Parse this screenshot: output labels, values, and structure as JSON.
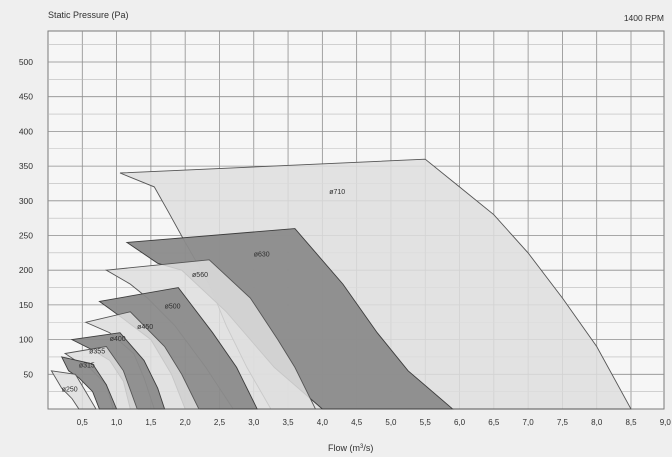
{
  "chart_data": {
    "type": "area",
    "ylabel": "Static Pressure (Pa)",
    "xlabel_main": "Flow (m",
    "xlabel_sup": "3",
    "xlabel_tail": "/s)",
    "corner_note": "1400 RPM",
    "xlim": [
      0,
      9.0
    ],
    "ylim": [
      0,
      560
    ],
    "x_ticks": [
      {
        "v": 0.5,
        "label": "0,5"
      },
      {
        "v": 1.0,
        "label": "1,0"
      },
      {
        "v": 1.5,
        "label": "1,5"
      },
      {
        "v": 2.0,
        "label": "2,0"
      },
      {
        "v": 2.5,
        "label": "2,5"
      },
      {
        "v": 3.0,
        "label": "3,0"
      },
      {
        "v": 3.5,
        "label": "3,5"
      },
      {
        "v": 4.0,
        "label": "4,0"
      },
      {
        "v": 4.5,
        "label": "4,5"
      },
      {
        "v": 5.0,
        "label": "5,0"
      },
      {
        "v": 5.5,
        "label": "5,5"
      },
      {
        "v": 6.0,
        "label": "6,0"
      },
      {
        "v": 6.5,
        "label": "6,5"
      },
      {
        "v": 7.0,
        "label": "7,0"
      },
      {
        "v": 7.5,
        "label": "7,5"
      },
      {
        "v": 8.0,
        "label": "8,0"
      },
      {
        "v": 8.5,
        "label": "8,5"
      },
      {
        "v": 9.0,
        "label": "9,0"
      }
    ],
    "y_ticks": [
      50,
      100,
      150,
      200,
      250,
      300,
      350,
      400,
      450,
      500
    ],
    "grid": true,
    "series": [
      {
        "name": "ø710",
        "fill": "light",
        "region": [
          [
            1.05,
            340
          ],
          [
            5.5,
            360
          ],
          [
            6.0,
            320
          ],
          [
            6.5,
            280
          ],
          [
            7.0,
            225
          ],
          [
            7.5,
            160
          ],
          [
            8.0,
            90
          ],
          [
            8.5,
            0
          ],
          [
            3.25,
            0
          ],
          [
            2.9,
            60
          ],
          [
            2.6,
            120
          ],
          [
            2.35,
            180
          ],
          [
            2.0,
            240
          ],
          [
            1.75,
            285
          ],
          [
            1.55,
            320
          ]
        ],
        "label_at": [
          4.1,
          310
        ]
      },
      {
        "name": "ø630",
        "fill": "dark",
        "region": [
          [
            1.15,
            240
          ],
          [
            3.6,
            260
          ],
          [
            4.3,
            180
          ],
          [
            4.8,
            110
          ],
          [
            5.25,
            55
          ],
          [
            5.9,
            0
          ],
          [
            4.0,
            0
          ],
          [
            3.3,
            60
          ],
          [
            2.6,
            140
          ],
          [
            1.95,
            200
          ],
          [
            1.6,
            210
          ]
        ],
        "label_at": [
          3.0,
          220
        ]
      },
      {
        "name": "ø560",
        "fill": "light",
        "region": [
          [
            0.85,
            200
          ],
          [
            2.35,
            215
          ],
          [
            2.95,
            160
          ],
          [
            3.35,
            100
          ],
          [
            3.6,
            60
          ],
          [
            3.9,
            0
          ],
          [
            2.7,
            0
          ],
          [
            2.3,
            60
          ],
          [
            1.85,
            120
          ],
          [
            1.45,
            160
          ],
          [
            1.2,
            180
          ]
        ],
        "label_at": [
          2.1,
          190
        ]
      },
      {
        "name": "ø500",
        "fill": "dark",
        "region": [
          [
            0.75,
            155
          ],
          [
            1.9,
            175
          ],
          [
            2.4,
            110
          ],
          [
            2.75,
            60
          ],
          [
            3.05,
            0
          ],
          [
            2.0,
            0
          ],
          [
            1.8,
            50
          ],
          [
            1.5,
            100
          ],
          [
            1.1,
            130
          ]
        ],
        "label_at": [
          1.7,
          145
        ]
      },
      {
        "name": "ø450",
        "fill": "light",
        "region": [
          [
            0.55,
            125
          ],
          [
            1.2,
            140
          ],
          [
            1.7,
            90
          ],
          [
            1.95,
            50
          ],
          [
            2.2,
            0
          ],
          [
            1.55,
            0
          ],
          [
            1.4,
            45
          ],
          [
            1.25,
            80
          ],
          [
            0.9,
            110
          ]
        ],
        "label_at": [
          1.3,
          115
        ]
      },
      {
        "name": "ø400",
        "fill": "dark",
        "region": [
          [
            0.35,
            100
          ],
          [
            1.05,
            110
          ],
          [
            1.4,
            70
          ],
          [
            1.6,
            30
          ],
          [
            1.7,
            0
          ],
          [
            1.2,
            0
          ],
          [
            1.1,
            40
          ],
          [
            0.9,
            70
          ],
          [
            0.65,
            85
          ]
        ],
        "label_at": [
          0.9,
          98
        ]
      },
      {
        "name": "ø355",
        "fill": "light",
        "region": [
          [
            0.25,
            80
          ],
          [
            0.85,
            90
          ],
          [
            1.1,
            55
          ],
          [
            1.3,
            0
          ],
          [
            0.95,
            0
          ],
          [
            0.85,
            35
          ],
          [
            0.6,
            60
          ],
          [
            0.4,
            70
          ]
        ],
        "label_at": [
          0.6,
          80
        ]
      },
      {
        "name": "ø315",
        "fill": "dark",
        "region": [
          [
            0.2,
            75
          ],
          [
            0.65,
            65
          ],
          [
            0.85,
            35
          ],
          [
            1.0,
            0
          ],
          [
            0.75,
            0
          ],
          [
            0.65,
            25
          ],
          [
            0.45,
            45
          ],
          [
            0.3,
            55
          ]
        ],
        "label_at": [
          0.45,
          60
        ]
      },
      {
        "name": "ø250",
        "fill": "light",
        "region": [
          [
            0.05,
            55
          ],
          [
            0.4,
            50
          ],
          [
            0.55,
            25
          ],
          [
            0.7,
            0
          ],
          [
            0.45,
            0
          ],
          [
            0.35,
            15
          ],
          [
            0.2,
            30
          ]
        ],
        "label_at": [
          0.2,
          25
        ]
      }
    ]
  }
}
